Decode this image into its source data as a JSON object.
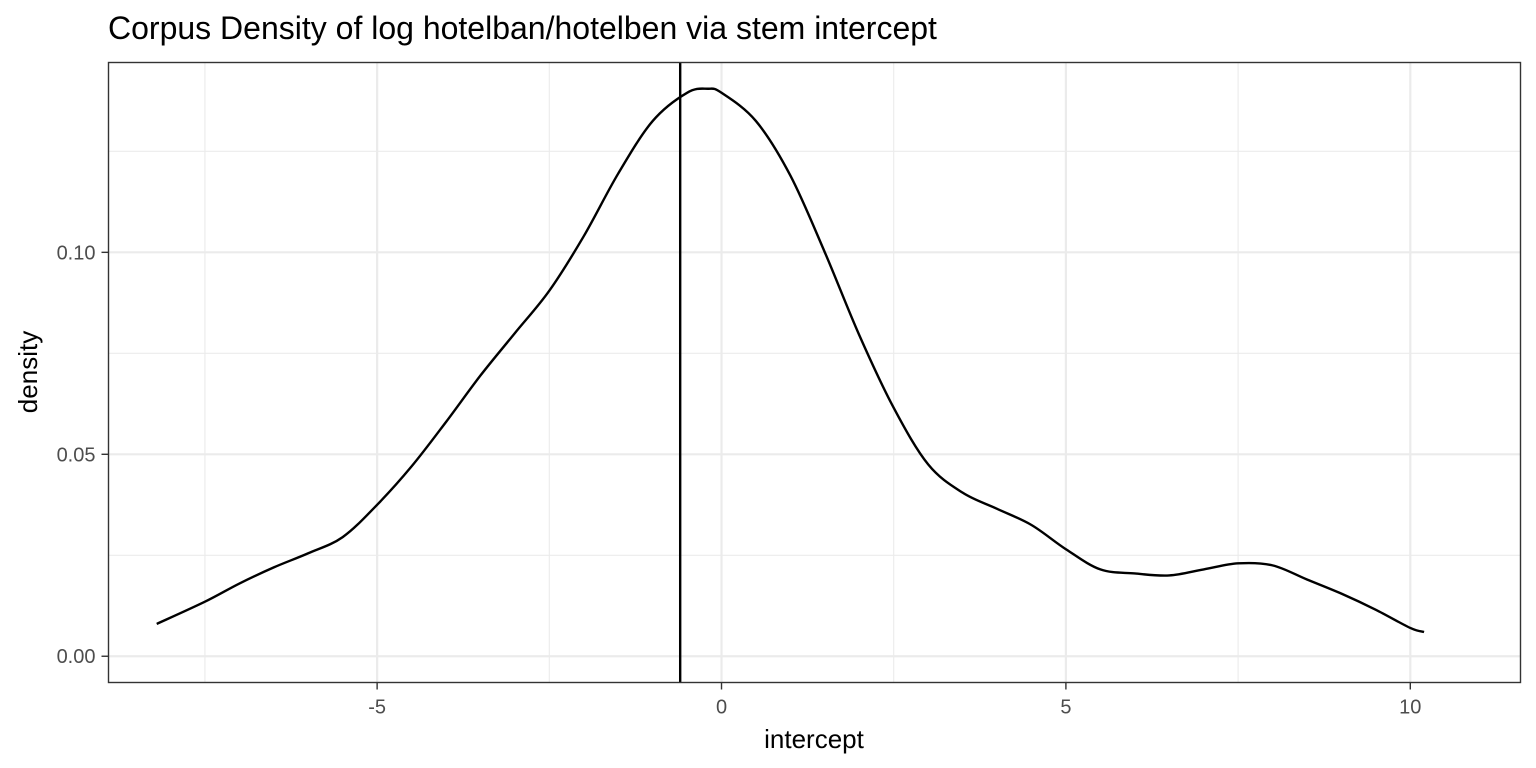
{
  "chart_data": {
    "type": "line",
    "title": "Corpus Density of log hotelban/hotelben via stem intercept",
    "xlabel": "intercept",
    "ylabel": "density",
    "xlim": [
      -8.9,
      11.6
    ],
    "ylim": [
      -0.0065,
      0.147
    ],
    "x_ticks": [
      -5,
      0,
      5,
      10
    ],
    "x_tick_labels": [
      "-5",
      "0",
      "5",
      "10"
    ],
    "x_minor_ticks": [
      -7.5,
      -2.5,
      2.5,
      7.5
    ],
    "y_ticks": [
      0.0,
      0.05,
      0.1
    ],
    "y_tick_labels": [
      "0.00",
      "0.05",
      "0.10"
    ],
    "y_minor_ticks": [
      0.025,
      0.075,
      0.125
    ],
    "grid": true,
    "legend": "none",
    "vline": {
      "x": -0.6
    },
    "series": [
      {
        "x": [
          -8.2,
          -7.5,
          -7.0,
          -6.5,
          -6.0,
          -5.5,
          -5.0,
          -4.5,
          -4.0,
          -3.5,
          -3.0,
          -2.5,
          -2.0,
          -1.5,
          -1.0,
          -0.5,
          -0.2,
          0.0,
          0.5,
          1.0,
          1.5,
          2.0,
          2.5,
          3.0,
          3.5,
          4.0,
          4.5,
          5.0,
          5.5,
          6.0,
          6.5,
          7.0,
          7.5,
          8.0,
          8.5,
          9.0,
          9.5,
          10.0,
          10.2
        ],
        "y": [
          0.008,
          0.0135,
          0.018,
          0.022,
          0.0255,
          0.0295,
          0.0375,
          0.047,
          0.058,
          0.0695,
          0.08,
          0.0905,
          0.104,
          0.1195,
          0.1325,
          0.1395,
          0.1405,
          0.1395,
          0.1325,
          0.119,
          0.1,
          0.0795,
          0.0615,
          0.0475,
          0.0405,
          0.0365,
          0.0325,
          0.0265,
          0.0215,
          0.0205,
          0.02,
          0.0215,
          0.023,
          0.0225,
          0.019,
          0.0155,
          0.0115,
          0.007,
          0.006
        ]
      }
    ]
  }
}
